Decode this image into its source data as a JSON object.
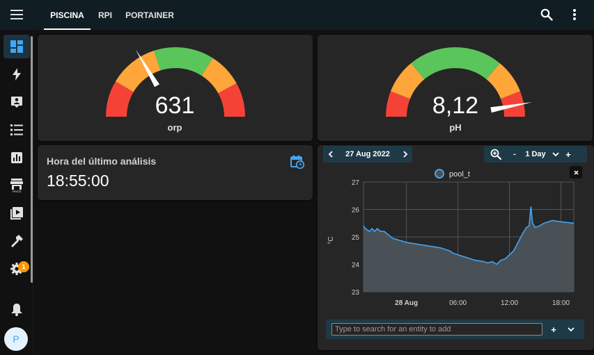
{
  "header": {
    "tabs": [
      {
        "label": "PISCINA",
        "active": true
      },
      {
        "label": "RPI",
        "active": false
      },
      {
        "label": "PORTAINER",
        "active": false
      }
    ]
  },
  "sidebar": {
    "items": [
      {
        "icon": "dashboard-icon",
        "active": true
      },
      {
        "icon": "energy-bolt-icon",
        "active": false
      },
      {
        "icon": "map-account-icon",
        "active": false
      },
      {
        "icon": "logbook-list-icon",
        "active": false
      },
      {
        "icon": "history-chart-icon",
        "active": false
      },
      {
        "icon": "hacs-store-icon",
        "active": false,
        "label": "HACS"
      },
      {
        "icon": "media-play-icon",
        "active": false
      },
      {
        "icon": "developer-hammer-icon",
        "active": false
      },
      {
        "icon": "settings-gear-icon",
        "active": false
      }
    ],
    "settings_badge": "1",
    "avatar_initial": "P"
  },
  "gauges": [
    {
      "value": "631",
      "label": "orp",
      "min": 0,
      "max": 1000,
      "numeric_value": 631,
      "segments": [
        {
          "from": 0,
          "to": 0.17,
          "color": "#f44336"
        },
        {
          "from": 0.17,
          "to": 0.4,
          "color": "#ffa63a"
        },
        {
          "from": 0.4,
          "to": 0.68,
          "color": "#5ac55a"
        },
        {
          "from": 0.68,
          "to": 0.84,
          "color": "#ffa63a"
        },
        {
          "from": 0.84,
          "to": 1,
          "color": "#f44336"
        }
      ],
      "needle_fraction": 0.33
    },
    {
      "value": "8,12",
      "label": "pH",
      "segments": [
        {
          "from": 0,
          "to": 0.12,
          "color": "#f44336"
        },
        {
          "from": 0.12,
          "to": 0.28,
          "color": "#ffa63a"
        },
        {
          "from": 0.28,
          "to": 0.72,
          "color": "#5ac55a"
        },
        {
          "from": 0.72,
          "to": 0.88,
          "color": "#ffa63a"
        },
        {
          "from": 0.88,
          "to": 1,
          "color": "#f44336"
        }
      ],
      "needle_fraction": 0.94
    }
  ],
  "analysis_card": {
    "title": "Hora del último análisis",
    "value": "18:55:00",
    "icon": "calendar-clock-icon"
  },
  "history": {
    "date_label": "27 Aug 2022",
    "zoom_icon": "zoom-in-icon",
    "period_label": "1 Day",
    "minus": "-",
    "plus": "+",
    "search_placeholder": "Type to search for an entity to add",
    "add_label": "+"
  },
  "chart_data": {
    "type": "area",
    "legend": [
      "pool_t"
    ],
    "ylabel": "°C",
    "ylim": [
      23,
      27
    ],
    "yticks": [
      "23",
      "24",
      "25",
      "26",
      "27"
    ],
    "xlim": [
      -5,
      19.5
    ],
    "xticks": [
      {
        "label": "28 Aug",
        "x": 0
      },
      {
        "label": "06:00",
        "x": 6
      },
      {
        "label": "12:00",
        "x": 12
      },
      {
        "label": "18:00",
        "x": 18
      }
    ],
    "series": [
      {
        "name": "pool_t",
        "color": "#42a5f5",
        "fill": "#4a5156",
        "x": [
          -5,
          -4.8,
          -4.3,
          -4.0,
          -3.7,
          -3.4,
          -3.0,
          -2.6,
          -2.2,
          -1.6,
          0,
          2,
          4,
          5,
          5.5,
          6,
          7,
          8,
          9,
          9.5,
          10,
          10.5,
          11,
          11.5,
          12,
          12.5,
          13,
          13.5,
          14,
          14.3,
          14.5,
          14.7,
          15,
          15.5,
          16,
          17,
          18,
          19.5
        ],
        "y": [
          25.4,
          25.3,
          25.2,
          25.3,
          25.2,
          25.3,
          25.2,
          25.2,
          25.1,
          24.95,
          24.8,
          24.7,
          24.6,
          24.5,
          24.4,
          24.35,
          24.25,
          24.15,
          24.1,
          24.05,
          24.1,
          24.0,
          24.15,
          24.2,
          24.35,
          24.5,
          24.8,
          25.1,
          25.35,
          25.4,
          26.1,
          25.5,
          25.35,
          25.4,
          25.5,
          25.6,
          25.55,
          25.5
        ]
      }
    ]
  }
}
